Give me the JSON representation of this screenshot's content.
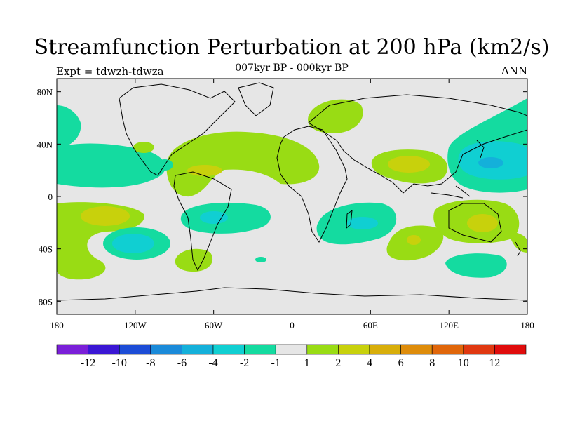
{
  "title": "Streamfunction Perturbation at 200 hPa (km2/s)",
  "left_label": "Expt = tdwzh-tdwza",
  "center_label": "007kyr BP - 000kyr BP",
  "right_label": "ANN",
  "map": {
    "projection": "cylindrical-equidistant",
    "lon_range": [
      -180,
      180
    ],
    "lat_range": [
      -90,
      90
    ],
    "background_color": "#e6e6e6",
    "coastline_color": "#000000",
    "lat_ticks": [
      {
        "value": 80,
        "label": "80N"
      },
      {
        "value": 40,
        "label": "40N"
      },
      {
        "value": 0,
        "label": "0"
      },
      {
        "value": -40,
        "label": "40S"
      },
      {
        "value": -80,
        "label": "80S"
      }
    ],
    "lon_ticks": [
      {
        "value": -180,
        "label": "180"
      },
      {
        "value": -120,
        "label": "120W"
      },
      {
        "value": -60,
        "label": "60W"
      },
      {
        "value": 0,
        "label": "0"
      },
      {
        "value": 60,
        "label": "60E"
      },
      {
        "value": 120,
        "label": "120E"
      },
      {
        "value": 180,
        "label": "180"
      }
    ]
  },
  "colorbar": {
    "colors": [
      "#7a1fd8",
      "#3a16d4",
      "#1c4cd6",
      "#1a8ad9",
      "#14b0da",
      "#10cfd2",
      "#14dba0",
      "#e6e6e6",
      "#99dc14",
      "#c8d10c",
      "#d8ae0a",
      "#de8c0a",
      "#e0660a",
      "#e03810",
      "#e00c0c"
    ],
    "labels": [
      "-12",
      "-10",
      "-8",
      "-6",
      "-4",
      "-2",
      "-1",
      "1",
      "2",
      "4",
      "6",
      "8",
      "10",
      "12"
    ]
  },
  "chart_data": {
    "type": "heatmap",
    "title": "Streamfunction Perturbation at 200 hPa (km2/s)",
    "subtitle": "007kyr BP - 000kyr BP",
    "units": "km2/s",
    "contour_levels": [
      -12,
      -10,
      -8,
      -6,
      -4,
      -2,
      -1,
      1,
      2,
      4,
      6,
      8,
      10,
      12
    ],
    "regions": [
      {
        "name": "north-pacific-negative",
        "category": -1,
        "lon": [
          -180,
          -120
        ],
        "lat": [
          10,
          30
        ]
      },
      {
        "name": "northeast-pacific-negative",
        "category": -1,
        "lon": [
          -180,
          -150
        ],
        "lat": [
          45,
          75
        ]
      },
      {
        "name": "south-pacific-positive",
        "category": 2,
        "lon": [
          -180,
          -130
        ],
        "lat": [
          -50,
          -5
        ]
      },
      {
        "name": "south-pacific-core-positive",
        "category": 4,
        "lon": [
          -170,
          -145
        ],
        "lat": [
          -20,
          -10
        ]
      },
      {
        "name": "south-pacific-negative",
        "category": -4,
        "lon": [
          -150,
          -110
        ],
        "lat": [
          -45,
          -20
        ]
      },
      {
        "name": "south-pacific-core-negative",
        "category": -6,
        "lon": [
          -140,
          -120
        ],
        "lat": [
          -42,
          -30
        ]
      },
      {
        "name": "north-atlantic-positive",
        "category": 2,
        "lon": [
          -100,
          -20
        ],
        "lat": [
          15,
          45
        ]
      },
      {
        "name": "caribbean-core-positive",
        "category": 4,
        "lon": [
          -90,
          -50
        ],
        "lat": [
          15,
          25
        ]
      },
      {
        "name": "south-atlantic-negative",
        "category": -2,
        "lon": [
          -70,
          -25
        ],
        "lat": [
          -25,
          -5
        ]
      },
      {
        "name": "south-atlantic-core-negative",
        "category": -4,
        "lon": [
          -60,
          -45
        ],
        "lat": [
          -20,
          -12
        ]
      },
      {
        "name": "patagonia-positive",
        "category": 2,
        "lon": [
          -75,
          -50
        ],
        "lat": [
          -55,
          -40
        ]
      },
      {
        "name": "eurasia-positive",
        "category": 2,
        "lon": [
          0,
          40
        ],
        "lat": [
          55,
          75
        ]
      },
      {
        "name": "asia-positive",
        "category": 2,
        "lon": [
          40,
          100
        ],
        "lat": [
          15,
          40
        ]
      },
      {
        "name": "asia-core-positive",
        "category": 4,
        "lon": [
          60,
          90
        ],
        "lat": [
          15,
          35
        ]
      },
      {
        "name": "indian-ocean-negative",
        "category": -2,
        "lon": [
          30,
          80
        ],
        "lat": [
          -40,
          -10
        ]
      },
      {
        "name": "indian-ocean-core-negative",
        "category": -4,
        "lon": [
          45,
          70
        ],
        "lat": [
          -25,
          -15
        ]
      },
      {
        "name": "southern-indian-positive",
        "category": 2,
        "lon": [
          65,
          110
        ],
        "lat": [
          -50,
          -20
        ]
      },
      {
        "name": "northwest-pacific-negative",
        "category": -2,
        "lon": [
          120,
          180
        ],
        "lat": [
          10,
          55
        ]
      },
      {
        "name": "northwest-pacific-core-negative",
        "category": -6,
        "lon": [
          135,
          170
        ],
        "lat": [
          15,
          45
        ]
      },
      {
        "name": "australia-positive",
        "category": 2,
        "lon": [
          110,
          180
        ],
        "lat": [
          -45,
          -5
        ]
      },
      {
        "name": "australia-core-positive",
        "category": 4,
        "lon": [
          135,
          160
        ],
        "lat": [
          -35,
          -15
        ]
      },
      {
        "name": "southern-ocean-negative",
        "category": -2,
        "lon": [
          120,
          160
        ],
        "lat": [
          -60,
          -40
        ]
      }
    ]
  }
}
